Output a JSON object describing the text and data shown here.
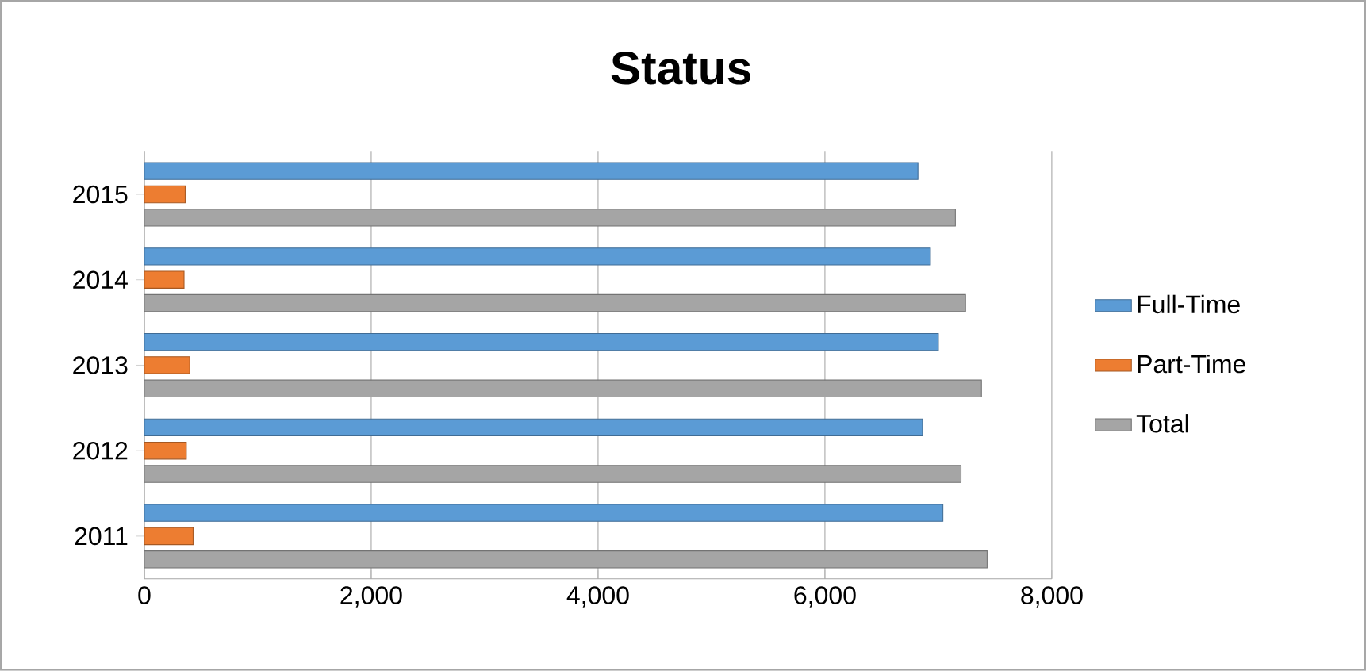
{
  "chart_data": {
    "type": "bar",
    "orientation": "horizontal",
    "title": "Status",
    "categories": [
      "2015",
      "2014",
      "2013",
      "2012",
      "2011"
    ],
    "series": [
      {
        "name": "Full-Time",
        "color": "#5b9bd5",
        "values": [
          6820,
          6930,
          7000,
          6860,
          7040
        ]
      },
      {
        "name": "Part-Time",
        "color": "#ed7d31",
        "values": [
          360,
          350,
          400,
          370,
          430
        ]
      },
      {
        "name": "Total",
        "color": "#a5a5a5",
        "values": [
          7150,
          7240,
          7380,
          7200,
          7430
        ]
      }
    ],
    "xlim": [
      0,
      8000
    ],
    "xticks": [
      {
        "value": 0,
        "label": "0"
      },
      {
        "value": 2000,
        "label": "2,000"
      },
      {
        "value": 4000,
        "label": "4,000"
      },
      {
        "value": 6000,
        "label": "6,000"
      },
      {
        "value": 8000,
        "label": "8,000"
      }
    ],
    "grid": "x",
    "legend": "right"
  }
}
